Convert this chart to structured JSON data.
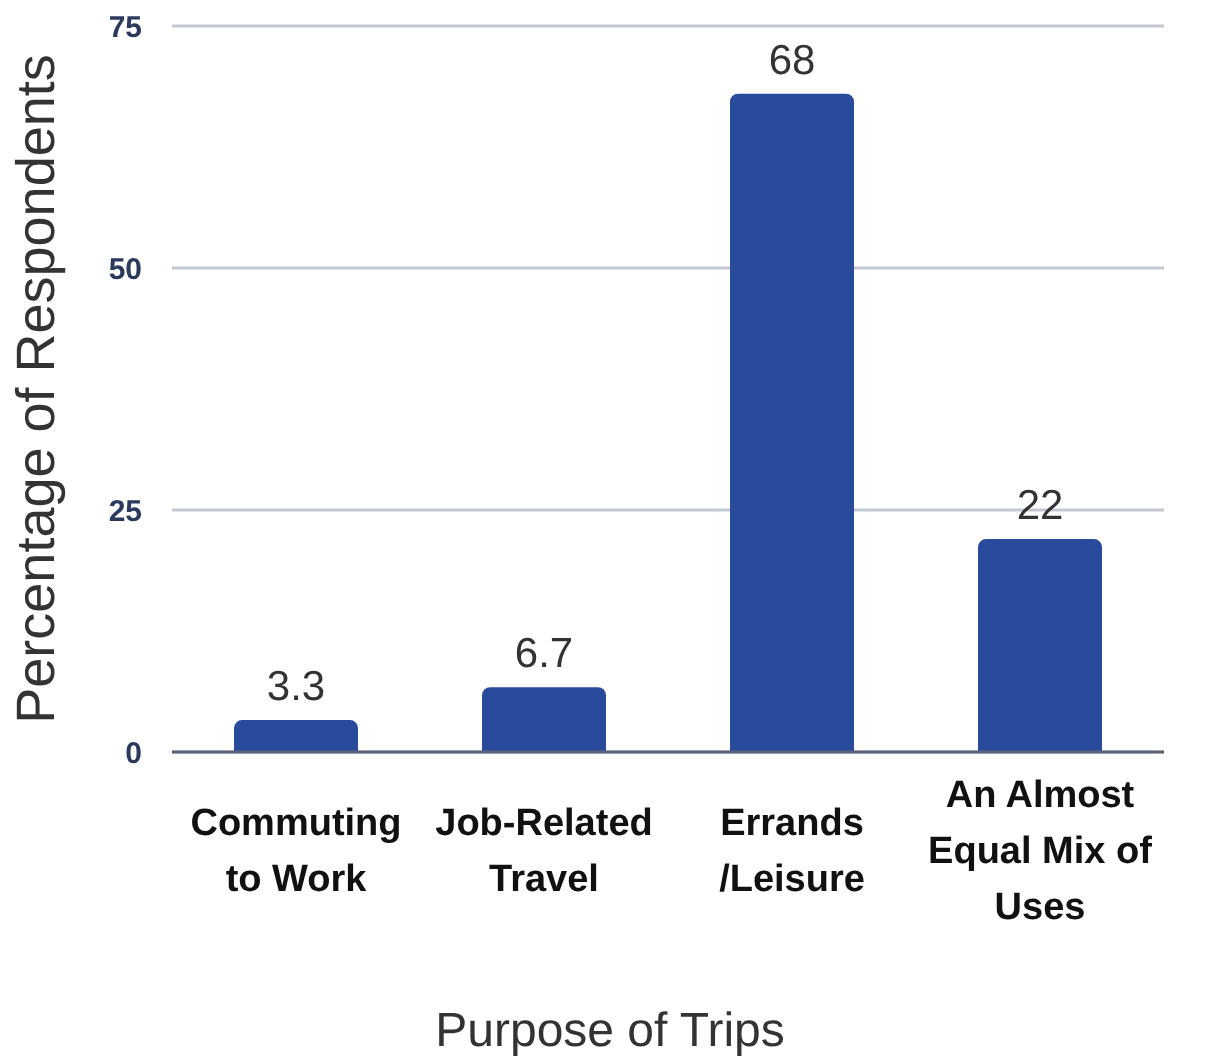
{
  "chart_data": {
    "type": "bar",
    "xlabel": "Purpose of Trips",
    "ylabel": "Percentage of Respondents",
    "categories": [
      "Commuting to Work",
      "Job-Related Travel",
      "Errands /Leisure",
      "An Almost Equal Mix of Uses"
    ],
    "values": [
      3.3,
      6.7,
      68,
      22
    ],
    "color": "#2a4a9c",
    "ylim": [
      0,
      75
    ],
    "yticks": [
      0,
      25,
      50,
      75
    ],
    "grid": "y",
    "data_labels": true
  }
}
